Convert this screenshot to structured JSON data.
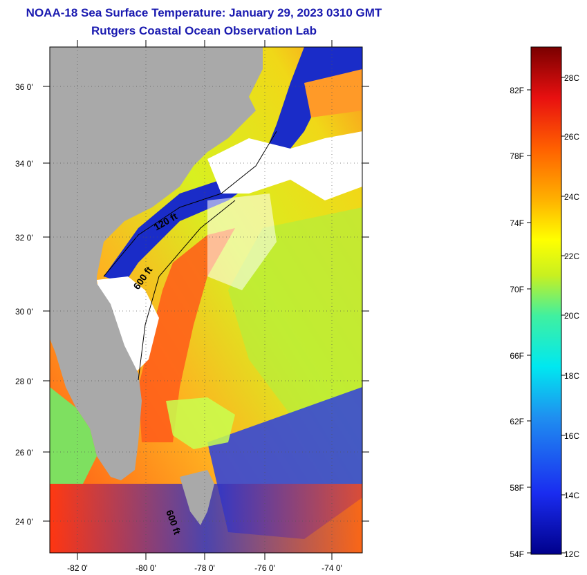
{
  "title": {
    "line1": "NOAA-18 Sea Surface Temperature:  January 29, 2023 0310 GMT",
    "line2": "Rutgers Coastal Ocean Observation Lab"
  },
  "map": {
    "lon_ticks": [
      "-82 0'",
      "-80 0'",
      "-78 0'",
      "-76 0'",
      "-74 0'"
    ],
    "lat_ticks": [
      "36 0'",
      "34 0'",
      "32 0'",
      "30 0'",
      "28 0'",
      "26 0'",
      "24 0'"
    ],
    "contour_labels": [
      "120 ft",
      "600 ft",
      "600 ft"
    ],
    "colors": {
      "land": "#a9a9a9",
      "cloud": "#ffffff",
      "warm": "#ff5a1a",
      "mid": "#f5e31a",
      "cool": "#1a30d0"
    }
  },
  "colorbar": {
    "fahrenheit_labels": [
      "82F",
      "78F",
      "74F",
      "70F",
      "66F",
      "62F",
      "58F",
      "54F"
    ],
    "celsius_labels": [
      "28C",
      "26C",
      "24C",
      "22C",
      "20C",
      "18C",
      "16C",
      "14C",
      "12C"
    ]
  }
}
